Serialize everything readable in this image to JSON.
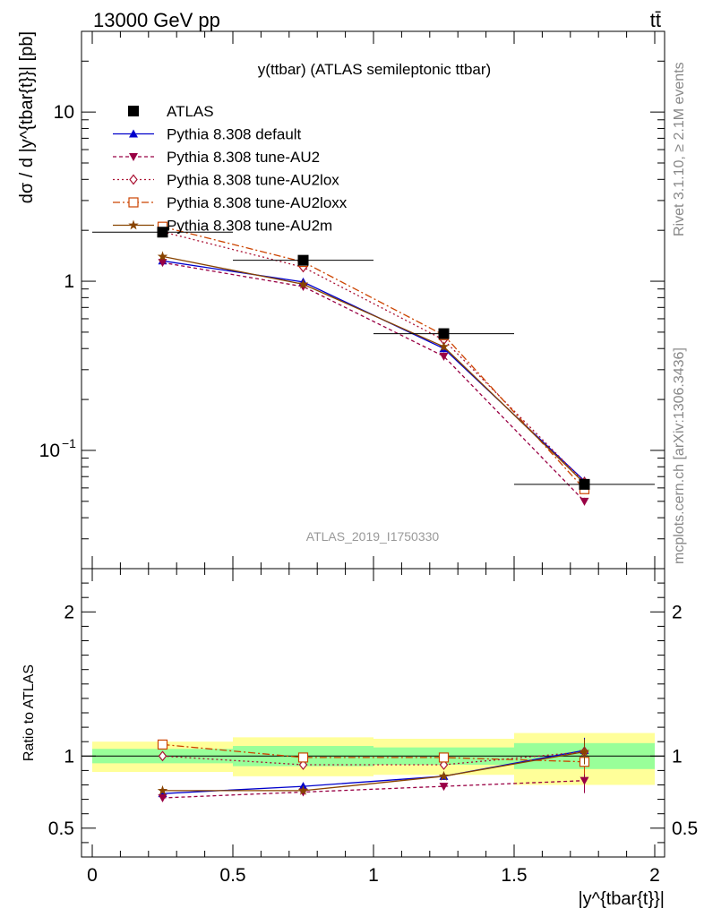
{
  "header": {
    "left": "13000 GeV pp",
    "right": "tt̄"
  },
  "side_text": {
    "rivet": "Rivet 3.1.10, ≥ 2.1M events",
    "mcplots": "mcplots.cern.ch [arXiv:1306.3436]"
  },
  "chart_data": [
    {
      "type": "line",
      "panel": "main",
      "title": "y(ttbar) (ATLAS semileptonic ttbar)",
      "watermark": "ATLAS_2019_I1750330",
      "ylabel": "dσ / d |y^{tbar{t}}| [pb]",
      "yscale": "log",
      "xlim": [
        0,
        2
      ],
      "ylim": [
        0.02,
        30
      ],
      "yticks": [
        {
          "value": 10,
          "label": "10"
        },
        {
          "value": 1,
          "label": "1"
        },
        {
          "value": 0.1,
          "label": "10",
          "sup": "−1"
        }
      ],
      "x": [
        0.25,
        0.75,
        1.25,
        1.75
      ],
      "data": {
        "name": "ATLAS",
        "values": [
          1.95,
          1.33,
          0.49,
          0.063
        ],
        "xerr": 0.25,
        "bands": [
          [
            0,
            0.5
          ],
          [
            0.5,
            1.0
          ],
          [
            1.0,
            1.5
          ],
          [
            1.5,
            2.0
          ]
        ]
      },
      "series": [
        {
          "name": "Pythia 8.308 default",
          "color": "#0000cc",
          "dash": "",
          "marker": "triangle-up",
          "values": [
            1.32,
            0.99,
            0.4,
            0.066
          ]
        },
        {
          "name": "Pythia 8.308 tune-AU2",
          "color": "#990044",
          "dash": "4,3",
          "marker": "triangle-down",
          "values": [
            1.29,
            0.93,
            0.36,
            0.05
          ]
        },
        {
          "name": "Pythia 8.308 tune-AU2lox",
          "color": "#aa1133",
          "dash": "2,3",
          "marker": "diamond-open",
          "values": [
            1.96,
            1.21,
            0.45,
            0.065
          ]
        },
        {
          "name": "Pythia 8.308 tune-AU2loxx",
          "color": "#cc4400",
          "dash": "8,3,2,3",
          "marker": "square-open",
          "values": [
            2.1,
            1.3,
            0.48,
            0.059
          ]
        },
        {
          "name": "Pythia 8.308 tune-AU2m",
          "color": "#884400",
          "dash": "",
          "marker": "star",
          "values": [
            1.4,
            0.96,
            0.41,
            0.064
          ]
        }
      ]
    },
    {
      "type": "line",
      "panel": "ratio",
      "ylabel": "Ratio to ATLAS",
      "xlabel": "|y^{tbar{t}}|",
      "xlim": [
        0,
        2
      ],
      "ylim": [
        0.3,
        2.3
      ],
      "xticks": [
        "0",
        "0.5",
        "1",
        "1.5",
        "2"
      ],
      "yticks": [
        "0.5",
        "1",
        "2"
      ],
      "x": [
        0.25,
        0.75,
        1.25,
        1.75
      ],
      "bands": [
        {
          "x": [
            0,
            0.5
          ],
          "green": [
            0.95,
            1.05
          ],
          "yellow": [
            0.89,
            1.1
          ]
        },
        {
          "x": [
            0.5,
            1.0
          ],
          "green": [
            0.93,
            1.07
          ],
          "yellow": [
            0.86,
            1.13
          ]
        },
        {
          "x": [
            1.0,
            1.5
          ],
          "green": [
            0.94,
            1.06
          ],
          "yellow": [
            0.87,
            1.12
          ]
        },
        {
          "x": [
            1.5,
            2.0
          ],
          "green": [
            0.91,
            1.09
          ],
          "yellow": [
            0.8,
            1.16
          ]
        }
      ],
      "series": [
        {
          "name": "Pythia 8.308 default",
          "values": [
            0.74,
            0.79,
            0.86,
            1.04
          ]
        },
        {
          "name": "Pythia 8.308 tune-AU2",
          "values": [
            0.71,
            0.75,
            0.79,
            0.83
          ]
        },
        {
          "name": "Pythia 8.308 tune-AU2lox",
          "values": [
            1.0,
            0.94,
            0.94,
            1.03
          ]
        },
        {
          "name": "Pythia 8.308 tune-AU2loxx",
          "values": [
            1.08,
            0.99,
            0.99,
            0.96
          ]
        },
        {
          "name": "Pythia 8.308 tune-AU2m",
          "values": [
            0.76,
            0.76,
            0.86,
            1.03
          ]
        }
      ]
    }
  ]
}
